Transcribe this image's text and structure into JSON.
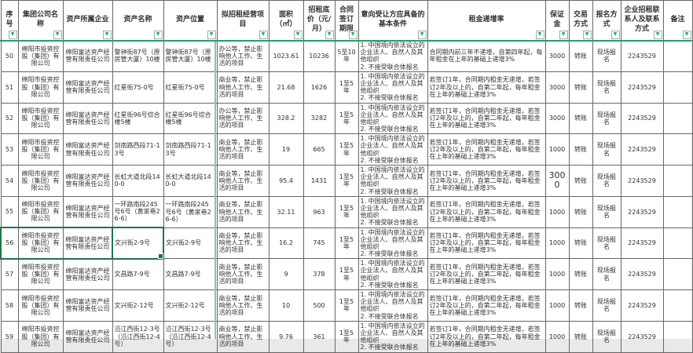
{
  "accent_colors": {
    "freeze_pane_line": "#21a366",
    "freeze_pane_line_light": "#7fcf9f",
    "selection_border": "#217346",
    "grid_border": "#666666"
  },
  "icons": {
    "filter_arrow": "▼"
  },
  "selection": {
    "selected_row_seq": "56",
    "active_cell_key": "asset_name",
    "band_columns": 4
  },
  "table": {
    "columns": [
      {
        "key": "seq",
        "label": "序号",
        "width": 22,
        "align": "c"
      },
      {
        "key": "group",
        "label": "集团公司名称",
        "width": 57,
        "align": "c"
      },
      {
        "key": "enterprise",
        "label": "资产所属企业",
        "width": 63,
        "align": "c"
      },
      {
        "key": "asset_name",
        "label": "资产名称",
        "width": 65,
        "align": "l"
      },
      {
        "key": "asset_location",
        "label": "资产位置",
        "width": 68,
        "align": "l"
      },
      {
        "key": "project",
        "label": "拟招租经营项目",
        "width": 66,
        "align": "l"
      },
      {
        "key": "area",
        "label": "面积（㎡）",
        "width": 44,
        "align": "c"
      },
      {
        "key": "base_price",
        "label": "招租底价（元/月）",
        "width": 40,
        "align": "c"
      },
      {
        "key": "term",
        "label": "合同签订期限",
        "width": 30,
        "align": "c"
      },
      {
        "key": "conditions",
        "label": "意向受让方应具备的基本条件",
        "width": 88,
        "align": "l"
      },
      {
        "key": "rent_increase",
        "label": "租金递增率",
        "width": 150,
        "align": "l"
      },
      {
        "key": "deposit",
        "label": "保证金",
        "width": 30,
        "align": "c"
      },
      {
        "key": "trade_method",
        "label": "交易方式",
        "width": 30,
        "align": "c"
      },
      {
        "key": "signup_method",
        "label": "报名方式",
        "width": 36,
        "align": "c"
      },
      {
        "key": "contact",
        "label": "企业招租联系人及联系方式",
        "width": 54,
        "align": "c"
      },
      {
        "key": "remark",
        "label": "备注",
        "width": 37,
        "align": "c"
      }
    ],
    "rows": [
      {
        "seq": "50",
        "group": "绵阳市投资控股（集团）有限公司",
        "enterprise": "绵阳富达资产经营有限责任公司",
        "asset_name": "警钟街87号（原房管大厦）10楼",
        "asset_location": "警钟街87号（原房管大厦）10楼",
        "project": "办公等，禁止影响他人工作、生活的项目",
        "area": "1023.61",
        "base_price": "10236",
        "term": "5至10年",
        "conditions": "1. 中国境内依法设立的企业法人、自然人及其他组织\n2. 不接受联合体报名",
        "rent_increase": "合同期内前三年不递增，自第四年起，每年租金在上年的基础上递增3%",
        "deposit": "3000",
        "deposit_large": false,
        "trade_method": "转账",
        "signup_method": "现场报名",
        "contact": "2243529",
        "remark": ""
      },
      {
        "seq": "51",
        "group": "绵阳市投资控股（集团）有限公司",
        "enterprise": "绵阳富达资产经营有限责任公司",
        "asset_name": "红星街75-0号",
        "asset_location": "红星街75-0号",
        "project": "商业等，禁止影响他人工作、生活的项目",
        "area": "21.68",
        "base_price": "1626",
        "term": "1至5年",
        "conditions": "1. 中国境内依法设立的企业法人、自然人及其他组织\n2. 不接受联合体报名",
        "rent_increase": "若签订1年，合同期内租金无递增，若签订2年及以上的，自第二年起，每年租金在上年的基础上递增3%",
        "deposit": "3000",
        "deposit_large": false,
        "trade_method": "转账",
        "signup_method": "现场报名",
        "contact": "2243529",
        "remark": ""
      },
      {
        "seq": "52",
        "group": "绵阳市投资控股（集团）有限公司",
        "enterprise": "绵阳富达资产经营有限责任公司",
        "asset_name": "红星街96号综合楼5楼",
        "asset_location": "红星街96号综合楼5楼",
        "project": "办公等，禁止影响他人工作、生活的项目",
        "area": "328.2",
        "base_price": "3282",
        "term": "1至5年",
        "conditions": "1. 中国境内依法设立的企业法人、自然人及其他组织\n2. 不接受联合体报名",
        "rent_increase": "若签订1年，合同期内租金无递增，若签订2年及以上的，自第二年起，每年租金在上年的基础上递增3%",
        "deposit": "3000",
        "deposit_large": false,
        "trade_method": "转账",
        "signup_method": "现场报名",
        "contact": "2243529",
        "remark": ""
      },
      {
        "seq": "53",
        "group": "绵阳市投资控股（集团）有限公司",
        "enterprise": "绵阳富达资产经营有限责任公司",
        "asset_name": "剑南路西段71-13号",
        "asset_location": "剑南路西段71-13号",
        "project": "商业等，禁止影响他人工作、生活的项目",
        "area": "19",
        "base_price": "665",
        "term": "1至5年",
        "conditions": "1. 中国境内依法设立的企业法人、自然人及其他组织\n2. 不接受联合体报名",
        "rent_increase": "若签订1年，合同期内租金无递增，若签订2年及以上的，自第二年起，每年租金在上年的基础上递增3%",
        "deposit": "1000",
        "deposit_large": false,
        "trade_method": "转账",
        "signup_method": "现场报名",
        "contact": "2243529",
        "remark": ""
      },
      {
        "seq": "54",
        "group": "绵阳市投资控股（集团）有限公司",
        "enterprise": "绵阳富达资产经营有限责任公司",
        "asset_name": "长虹大道北段140-0",
        "asset_location": "长虹大道北段140-0",
        "project": "商业等，禁止影响他人工作、生活的项目",
        "area": "95.4",
        "base_price": "1431",
        "term": "1至5年",
        "conditions": "1. 中国境内依法设立的企业法人、自然人及其他组织\n2. 不接受联合体报名",
        "rent_increase": "若签订1年，合同期内租金无递增，若签订2年及以上的，自第二年起，每年租金在上年的基础上递增3%",
        "deposit": "3000",
        "deposit_large": true,
        "trade_method": "转账",
        "signup_method": "现场报名",
        "contact": "2243529",
        "remark": ""
      },
      {
        "seq": "55",
        "group": "绵阳市投资控股（集团）有限公司",
        "enterprise": "绵阳富达资产经营有限责任公司",
        "asset_name": "一环路南段245号6号（黄家巷26-6）",
        "asset_location": "一环路南段245号6号（黄家巷26-6）",
        "project": "商业等，禁止影响他人工作、生活的项目",
        "area": "32.11",
        "base_price": "963",
        "term": "1至5年",
        "conditions": "1. 中国境内依法设立的企业法人、自然人及其他组织\n2. 不接受联合体报名",
        "rent_increase": "若签订1年，合同期内租金无递增，若签订2年及以上的，自第二年起，每年租金在上年的基础上递增3%",
        "deposit": "1000",
        "deposit_large": false,
        "trade_method": "转账",
        "signup_method": "现场报名",
        "contact": "2243529",
        "remark": ""
      },
      {
        "seq": "56",
        "group": "绵阳市投资控股（集团）有限公司",
        "enterprise": "绵阳富达资产经营有限责任公司",
        "asset_name": "文兴街2-9号",
        "asset_location": "文兴街2-9号",
        "project": "商业等，禁止影响他人工作、生活的项目",
        "area": "16.2",
        "base_price": "745",
        "term": "1至5年",
        "conditions": "1. 中国境内依法设立的企业法人、自然人及其他组织\n2. 不接受联合体报名",
        "rent_increase": "若签订1年，合同期内租金无递增，若签订2年及以上的，自第二年起，每年租金在上年的基础上递增3%",
        "deposit": "1000",
        "deposit_large": false,
        "trade_method": "转账",
        "signup_method": "现场报名",
        "contact": "2243529",
        "remark": ""
      },
      {
        "seq": "57",
        "group": "绵阳市投资控股（集团）有限公司",
        "enterprise": "绵阳富达资产经营有限责任公司",
        "asset_name": "文昌路7-9号",
        "asset_location": "文昌路7-9号",
        "project": "商业等，禁止影响他人工作、生活的项目",
        "area": "9",
        "base_price": "378",
        "term": "1至5年",
        "conditions": "1. 中国境内依法设立的企业法人、自然人及其他组织\n2. 不接受联合体报名",
        "rent_increase": "若签订1年，合同期内租金无递增，若签订2年及以上的，自第二年起，每年租金在上年的基础上递增3%",
        "deposit": "1000",
        "deposit_large": false,
        "trade_method": "转账",
        "signup_method": "现场报名",
        "contact": "2243529",
        "remark": ""
      },
      {
        "seq": "58",
        "group": "绵阳市投资控股（集团）有限公司",
        "enterprise": "绵阳富达资产经营有限责任公司",
        "asset_name": "文兴街2-12号",
        "asset_location": "文兴街2-12号",
        "project": "商业等，禁止影响他人工作、生活的项目",
        "area": "10",
        "base_price": "500",
        "term": "1至5年",
        "conditions": "1. 中国境内依法设立的企业法人、自然人及其他组织\n2. 不接受联合体报名",
        "rent_increase": "若签订1年，合同期内租金无递增，若签订2年及以上的，自第二年起，每年租金在上年的基础上递增3%",
        "deposit": "1000",
        "deposit_large": false,
        "trade_method": "转账",
        "signup_method": "现场报名",
        "contact": "2243529",
        "remark": ""
      },
      {
        "seq": "59",
        "group": "绵阳市投资控股（集团）有限公司",
        "enterprise": "绵阳富达资产经营有限责任公司",
        "asset_name": "沿江西街12-3号（沿江西街12-4号）",
        "asset_location": "沿江西街12-3号（沿江西街12-4号）",
        "project": "商业等，禁止影响他人工作、生活的项目",
        "area": "9.76",
        "base_price": "361",
        "term": "1至5年",
        "conditions": "1. 中国境内依法设立的企业法人、自然人及其他组织\n2. 不接受联合体报名",
        "rent_increase": "若签订1年，合同期内租金无递增，若签订2年及以上的，自第二年起，每年租金在上年的基础上递增3%",
        "deposit": "1000",
        "deposit_large": false,
        "trade_method": "转账",
        "signup_method": "现场报名",
        "contact": "2243529",
        "remark": ""
      }
    ]
  }
}
